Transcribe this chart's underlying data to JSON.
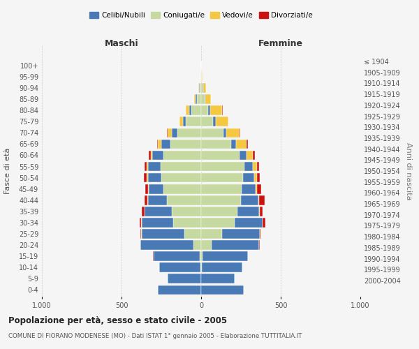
{
  "age_groups": [
    "0-4",
    "5-9",
    "10-14",
    "15-19",
    "20-24",
    "25-29",
    "30-34",
    "35-39",
    "40-44",
    "45-49",
    "50-54",
    "55-59",
    "60-64",
    "65-69",
    "70-74",
    "75-79",
    "80-84",
    "85-89",
    "90-94",
    "95-99",
    "100+"
  ],
  "birth_years": [
    "2000-2004",
    "1995-1999",
    "1990-1994",
    "1985-1989",
    "1980-1984",
    "1975-1979",
    "1970-1974",
    "1965-1969",
    "1960-1964",
    "1955-1959",
    "1950-1954",
    "1945-1949",
    "1940-1944",
    "1935-1939",
    "1930-1934",
    "1925-1929",
    "1920-1924",
    "1915-1919",
    "1910-1914",
    "1905-1909",
    "≤ 1904"
  ],
  "maschi": {
    "celibi": [
      270,
      210,
      260,
      290,
      330,
      270,
      200,
      170,
      120,
      95,
      85,
      80,
      70,
      55,
      35,
      20,
      15,
      8,
      5,
      2,
      0
    ],
    "coniugati": [
      2,
      2,
      5,
      10,
      50,
      105,
      175,
      185,
      215,
      235,
      250,
      255,
      235,
      195,
      150,
      95,
      60,
      25,
      10,
      3,
      0
    ],
    "vedovi": [
      0,
      0,
      0,
      0,
      0,
      1,
      1,
      1,
      2,
      3,
      5,
      5,
      10,
      20,
      25,
      20,
      20,
      10,
      3,
      0,
      0
    ],
    "divorziati": [
      0,
      0,
      0,
      1,
      2,
      5,
      12,
      18,
      20,
      20,
      18,
      15,
      12,
      8,
      5,
      2,
      0,
      0,
      0,
      0,
      0
    ]
  },
  "femmine": {
    "nubili": [
      265,
      210,
      255,
      285,
      300,
      240,
      175,
      135,
      110,
      85,
      70,
      55,
      45,
      30,
      20,
      15,
      12,
      8,
      5,
      2,
      0
    ],
    "coniugate": [
      2,
      2,
      5,
      10,
      65,
      130,
      210,
      230,
      250,
      255,
      265,
      270,
      240,
      190,
      140,
      75,
      45,
      20,
      10,
      3,
      0
    ],
    "vedove": [
      0,
      0,
      0,
      0,
      1,
      1,
      2,
      3,
      5,
      10,
      15,
      25,
      40,
      65,
      80,
      80,
      75,
      35,
      15,
      5,
      0
    ],
    "divorziate": [
      0,
      0,
      0,
      1,
      2,
      5,
      15,
      20,
      35,
      25,
      20,
      15,
      12,
      8,
      5,
      3,
      2,
      0,
      0,
      0,
      0
    ]
  },
  "colors": {
    "celibi_nubili": "#4a7ab5",
    "coniugati": "#c5d9a0",
    "vedovi": "#f5c842",
    "divorziati": "#cc1111"
  },
  "xlim": 1000,
  "title": "Popolazione per età, sesso e stato civile - 2005",
  "subtitle": "COMUNE DI FIORANO MODENESE (MO) - Dati ISTAT 1° gennaio 2005 - Elaborazione TUTTITALIA.IT",
  "ylabel_left": "Fasce di età",
  "ylabel_right": "Anni di nascita",
  "xlabel_left": "Maschi",
  "xlabel_right": "Femmine",
  "legend_labels": [
    "Celibi/Nubili",
    "Coniugati/e",
    "Vedovi/e",
    "Divorziati/e"
  ],
  "background_color": "#f5f5f5",
  "grid_color": "#cccccc"
}
